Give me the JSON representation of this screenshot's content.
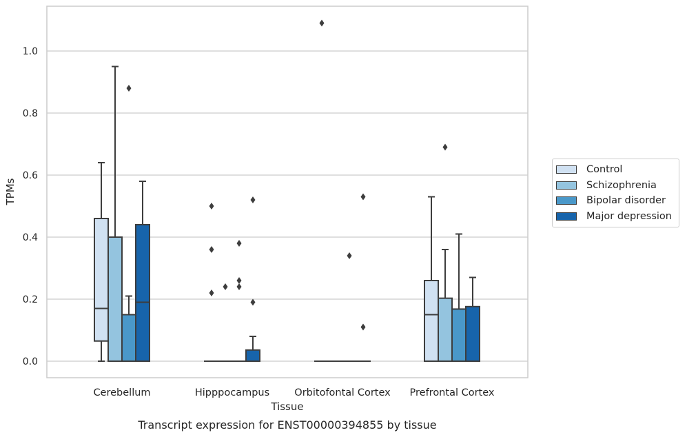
{
  "chart_data": {
    "type": "box",
    "title": "",
    "caption": "Transcript expression for ENST00000394855 by tissue",
    "xlabel": "Tissue",
    "ylabel": "TPMs",
    "ylim": [
      -0.05,
      1.15
    ],
    "yticks": [
      "0.0",
      "0.2",
      "0.4",
      "0.6",
      "0.8",
      "1.0"
    ],
    "grid": true,
    "legend_position": "right",
    "categories": [
      "Cerebellum",
      "Hipppocampus",
      "Orbitofontal Cortex",
      "Prefrontal Cortex"
    ],
    "series": [
      {
        "name": "Control",
        "color": "#d0e1f2",
        "boxes": [
          {
            "whislo": 0.0,
            "q1": 0.065,
            "med": 0.17,
            "q3": 0.46,
            "whishi": 0.64,
            "fliers": []
          },
          {
            "whislo": 0.0,
            "q1": 0.0,
            "med": 0.0,
            "q3": 0.0,
            "whishi": 0.0,
            "fliers": [
              0.5,
              0.36,
              0.22
            ]
          },
          {
            "whislo": 0.0,
            "q1": 0.0,
            "med": 0.0,
            "q3": 0.0,
            "whishi": 0.0,
            "fliers": [
              1.09
            ]
          },
          {
            "whislo": 0.0,
            "q1": 0.0,
            "med": 0.15,
            "q3": 0.26,
            "whishi": 0.53,
            "fliers": []
          }
        ]
      },
      {
        "name": "Schizophrenia",
        "color": "#94c4df",
        "boxes": [
          {
            "whislo": 0.0,
            "q1": 0.0,
            "med": 0.0,
            "q3": 0.4,
            "whishi": 0.95,
            "fliers": []
          },
          {
            "whislo": 0.0,
            "q1": 0.0,
            "med": 0.0,
            "q3": 0.0,
            "whishi": 0.0,
            "fliers": [
              0.24
            ]
          },
          {
            "whislo": 0.0,
            "q1": 0.0,
            "med": 0.0,
            "q3": 0.0,
            "whishi": 0.0,
            "fliers": []
          },
          {
            "whislo": 0.0,
            "q1": 0.0,
            "med": 0.0,
            "q3": 0.203,
            "whishi": 0.36,
            "fliers": [
              0.69
            ]
          }
        ]
      },
      {
        "name": "Bipolar disorder",
        "color": "#4a98c9",
        "boxes": [
          {
            "whislo": 0.0,
            "q1": 0.0,
            "med": 0.0,
            "q3": 0.15,
            "whishi": 0.21,
            "fliers": [
              0.88
            ]
          },
          {
            "whislo": 0.0,
            "q1": 0.0,
            "med": 0.0,
            "q3": 0.0,
            "whishi": 0.0,
            "fliers": [
              0.38,
              0.26,
              0.24
            ]
          },
          {
            "whislo": 0.0,
            "q1": 0.0,
            "med": 0.0,
            "q3": 0.0,
            "whishi": 0.0,
            "fliers": [
              0.34
            ]
          },
          {
            "whislo": 0.0,
            "q1": 0.0,
            "med": 0.0,
            "q3": 0.168,
            "whishi": 0.41,
            "fliers": []
          }
        ]
      },
      {
        "name": "Major depression",
        "color": "#1764ab",
        "boxes": [
          {
            "whislo": 0.0,
            "q1": 0.0,
            "med": 0.19,
            "q3": 0.44,
            "whishi": 0.58,
            "fliers": []
          },
          {
            "whislo": 0.0,
            "q1": 0.0,
            "med": 0.0,
            "q3": 0.036,
            "whishi": 0.08,
            "fliers": [
              0.52,
              0.19
            ]
          },
          {
            "whislo": 0.0,
            "q1": 0.0,
            "med": 0.0,
            "q3": 0.0,
            "whishi": 0.0,
            "fliers": [
              0.53,
              0.11
            ]
          },
          {
            "whislo": 0.0,
            "q1": 0.0,
            "med": 0.0,
            "q3": 0.176,
            "whishi": 0.27,
            "fliers": []
          }
        ]
      }
    ]
  }
}
